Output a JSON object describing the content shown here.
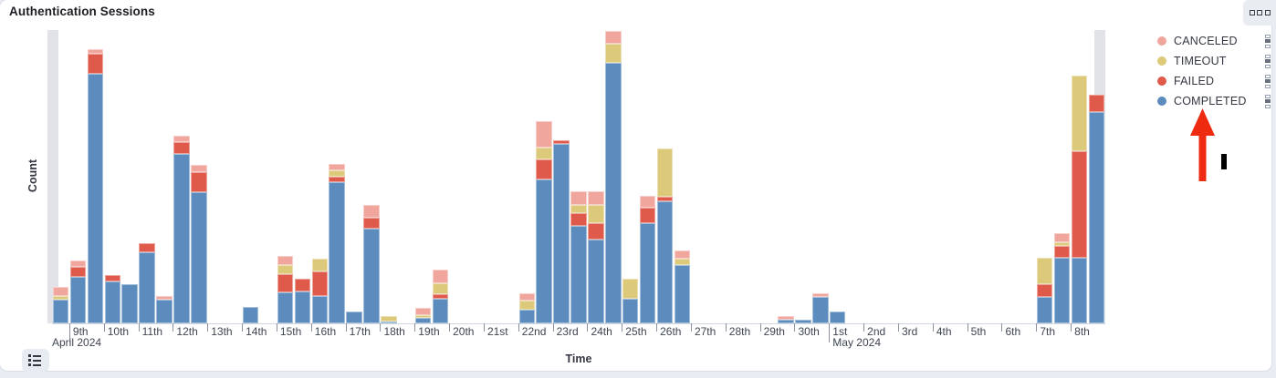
{
  "panel": {
    "title": "Authentication Sessions",
    "options_icon": "boxes-horizontal-icon",
    "legend_toggle_icon": "list-icon"
  },
  "legend": {
    "items": [
      {
        "label": "CANCELED",
        "color": "#f0a69d"
      },
      {
        "label": "TIMEOUT",
        "color": "#dcc97a"
      },
      {
        "label": "FAILED",
        "color": "#df5a4b"
      },
      {
        "label": "COMPLETED",
        "color": "#5b8cbd"
      }
    ],
    "item_action_icon": "boxes-vertical-icon"
  },
  "annotations": {
    "arrow": {
      "shape": "up-arrow",
      "color": "#ee2b10",
      "points_at": "COMPLETED legend item"
    },
    "mark": {
      "shape": "vertical-bar",
      "color": "#000000"
    }
  },
  "chart_data": {
    "type": "bar",
    "stacked": true,
    "title": "Authentication Sessions",
    "xlabel": "Time",
    "ylabel": "Count",
    "x_range": [
      "April 8 2024 12:00",
      "May 9 2024 00:00"
    ],
    "bucket_interval": "12h",
    "y_axis_tick_labels": "none (axis unlabeled)",
    "ylim": [
      0,
      322
    ],
    "units": "approximate counts (no y tick labels shown)",
    "grid": false,
    "legend_position": "right",
    "series_order_bottom_to_top": [
      "COMPLETED",
      "FAILED",
      "TIMEOUT",
      "CANCELED"
    ],
    "series_colors": [
      "#5b8cbd",
      "#df5a4b",
      "#dcc97a",
      "#f0a69d"
    ],
    "partial_bucket_bins": [
      0,
      60
    ],
    "partial_bucket_marker_color": "#e2e3e8",
    "bins": [
      {
        "t": "Apr 8 PM",
        "v": [
          26,
          0,
          4,
          10
        ]
      },
      {
        "t": "Apr 9 AM",
        "v": [
          51,
          11,
          0,
          7
        ]
      },
      {
        "t": "Apr 9 PM",
        "v": [
          274,
          22,
          0,
          5
        ]
      },
      {
        "t": "Apr 10 AM",
        "v": [
          46,
          7,
          0,
          0
        ]
      },
      {
        "t": "Apr 10 PM",
        "v": [
          43,
          0,
          0,
          0
        ]
      },
      {
        "t": "Apr 11 AM",
        "v": [
          78,
          10,
          0,
          0
        ]
      },
      {
        "t": "Apr 11 PM",
        "v": [
          26,
          0,
          0,
          4
        ]
      },
      {
        "t": "Apr 12 AM",
        "v": [
          186,
          13,
          0,
          7
        ]
      },
      {
        "t": "Apr 12 PM",
        "v": [
          144,
          22,
          0,
          8
        ]
      },
      {
        "t": "Apr 13 AM",
        "v": [
          0,
          0,
          0,
          0
        ]
      },
      {
        "t": "Apr 13 PM",
        "v": [
          0,
          0,
          0,
          0
        ]
      },
      {
        "t": "Apr 14 AM",
        "v": [
          18,
          0,
          0,
          0
        ]
      },
      {
        "t": "Apr 14 PM",
        "v": [
          0,
          0,
          0,
          0
        ]
      },
      {
        "t": "Apr 15 AM",
        "v": [
          34,
          20,
          10,
          10
        ]
      },
      {
        "t": "Apr 15 PM",
        "v": [
          35,
          14,
          0,
          0
        ]
      },
      {
        "t": "Apr 16 AM",
        "v": [
          30,
          27,
          14,
          0
        ]
      },
      {
        "t": "Apr 16 PM",
        "v": [
          155,
          6,
          7,
          7
        ]
      },
      {
        "t": "Apr 17 AM",
        "v": [
          13,
          0,
          0,
          0
        ]
      },
      {
        "t": "Apr 17 PM",
        "v": [
          104,
          12,
          0,
          14
        ]
      },
      {
        "t": "Apr 18 AM",
        "v": [
          2,
          0,
          6,
          0
        ]
      },
      {
        "t": "Apr 18 PM",
        "v": [
          0,
          0,
          0,
          0
        ]
      },
      {
        "t": "Apr 19 AM",
        "v": [
          6,
          0,
          3,
          8
        ]
      },
      {
        "t": "Apr 19 PM",
        "v": [
          27,
          5,
          12,
          15
        ]
      },
      {
        "t": "Apr 20 AM",
        "v": [
          0,
          0,
          0,
          0
        ]
      },
      {
        "t": "Apr 20 PM",
        "v": [
          0,
          0,
          0,
          0
        ]
      },
      {
        "t": "Apr 21 AM",
        "v": [
          0,
          0,
          0,
          0
        ]
      },
      {
        "t": "Apr 21 PM",
        "v": [
          0,
          0,
          0,
          0
        ]
      },
      {
        "t": "Apr 22 AM",
        "v": [
          15,
          0,
          10,
          8
        ]
      },
      {
        "t": "Apr 22 PM",
        "v": [
          158,
          22,
          13,
          29
        ]
      },
      {
        "t": "Apr 23 AM",
        "v": [
          197,
          4,
          0,
          0
        ]
      },
      {
        "t": "Apr 23 PM",
        "v": [
          107,
          14,
          9,
          15
        ]
      },
      {
        "t": "Apr 24 AM",
        "v": [
          92,
          18,
          20,
          15
        ]
      },
      {
        "t": "Apr 24 PM",
        "v": [
          286,
          0,
          21,
          14
        ]
      },
      {
        "t": "Apr 25 AM",
        "v": [
          27,
          0,
          22,
          0
        ]
      },
      {
        "t": "Apr 25 PM",
        "v": [
          110,
          17,
          0,
          13
        ]
      },
      {
        "t": "Apr 26 AM",
        "v": [
          134,
          5,
          53,
          0
        ]
      },
      {
        "t": "Apr 26 PM",
        "v": [
          64,
          0,
          7,
          9
        ]
      },
      {
        "t": "Apr 27 AM",
        "v": [
          0,
          0,
          0,
          0
        ]
      },
      {
        "t": "Apr 27 PM",
        "v": [
          0,
          0,
          0,
          0
        ]
      },
      {
        "t": "Apr 28 AM",
        "v": [
          0,
          0,
          0,
          0
        ]
      },
      {
        "t": "Apr 28 PM",
        "v": [
          0,
          0,
          0,
          0
        ]
      },
      {
        "t": "Apr 29 AM",
        "v": [
          0,
          0,
          0,
          0
        ]
      },
      {
        "t": "Apr 29 PM",
        "v": [
          4,
          0,
          0,
          4
        ]
      },
      {
        "t": "Apr 30 AM",
        "v": [
          4,
          0,
          0,
          0
        ]
      },
      {
        "t": "Apr 30 PM",
        "v": [
          29,
          0,
          0,
          4
        ]
      },
      {
        "t": "May 1 AM",
        "v": [
          13,
          0,
          0,
          0
        ]
      },
      {
        "t": "May 1 PM",
        "v": [
          0,
          0,
          0,
          0
        ]
      },
      {
        "t": "May 2 AM",
        "v": [
          0,
          0,
          0,
          0
        ]
      },
      {
        "t": "May 2 PM",
        "v": [
          0,
          0,
          0,
          0
        ]
      },
      {
        "t": "May 3 AM",
        "v": [
          0,
          0,
          0,
          0
        ]
      },
      {
        "t": "May 3 PM",
        "v": [
          0,
          0,
          0,
          0
        ]
      },
      {
        "t": "May 4 AM",
        "v": [
          0,
          0,
          0,
          0
        ]
      },
      {
        "t": "May 4 PM",
        "v": [
          0,
          0,
          0,
          0
        ]
      },
      {
        "t": "May 5 AM",
        "v": [
          0,
          0,
          0,
          0
        ]
      },
      {
        "t": "May 5 PM",
        "v": [
          0,
          0,
          0,
          0
        ]
      },
      {
        "t": "May 6 AM",
        "v": [
          0,
          0,
          0,
          0
        ]
      },
      {
        "t": "May 6 PM",
        "v": [
          0,
          0,
          0,
          0
        ]
      },
      {
        "t": "May 7 AM",
        "v": [
          29,
          14,
          29,
          0
        ]
      },
      {
        "t": "May 7 PM",
        "v": [
          72,
          13,
          4,
          10
        ]
      },
      {
        "t": "May 8 AM",
        "v": [
          72,
          117,
          83,
          0
        ]
      },
      {
        "t": "May 8 PM",
        "v": [
          232,
          19,
          0,
          0
        ]
      }
    ],
    "x_ticks": [
      {
        "i": 1,
        "label": "9th",
        "month": "April 2024"
      },
      {
        "i": 3,
        "label": "10th"
      },
      {
        "i": 5,
        "label": "11th"
      },
      {
        "i": 7,
        "label": "12th"
      },
      {
        "i": 9,
        "label": "13th"
      },
      {
        "i": 11,
        "label": "14th"
      },
      {
        "i": 13,
        "label": "15th"
      },
      {
        "i": 15,
        "label": "16th"
      },
      {
        "i": 17,
        "label": "17th"
      },
      {
        "i": 19,
        "label": "18th"
      },
      {
        "i": 21,
        "label": "19th"
      },
      {
        "i": 23,
        "label": "20th"
      },
      {
        "i": 25,
        "label": "21st"
      },
      {
        "i": 27,
        "label": "22nd"
      },
      {
        "i": 29,
        "label": "23rd"
      },
      {
        "i": 31,
        "label": "24th"
      },
      {
        "i": 33,
        "label": "25th"
      },
      {
        "i": 35,
        "label": "26th"
      },
      {
        "i": 37,
        "label": "27th"
      },
      {
        "i": 39,
        "label": "28th"
      },
      {
        "i": 41,
        "label": "29th"
      },
      {
        "i": 43,
        "label": "30th"
      },
      {
        "i": 45,
        "label": "1st",
        "month": "May 2024"
      },
      {
        "i": 47,
        "label": "2nd"
      },
      {
        "i": 49,
        "label": "3rd"
      },
      {
        "i": 51,
        "label": "4th"
      },
      {
        "i": 53,
        "label": "5th"
      },
      {
        "i": 55,
        "label": "6th"
      },
      {
        "i": 57,
        "label": "7th"
      },
      {
        "i": 59,
        "label": "8th"
      }
    ]
  }
}
